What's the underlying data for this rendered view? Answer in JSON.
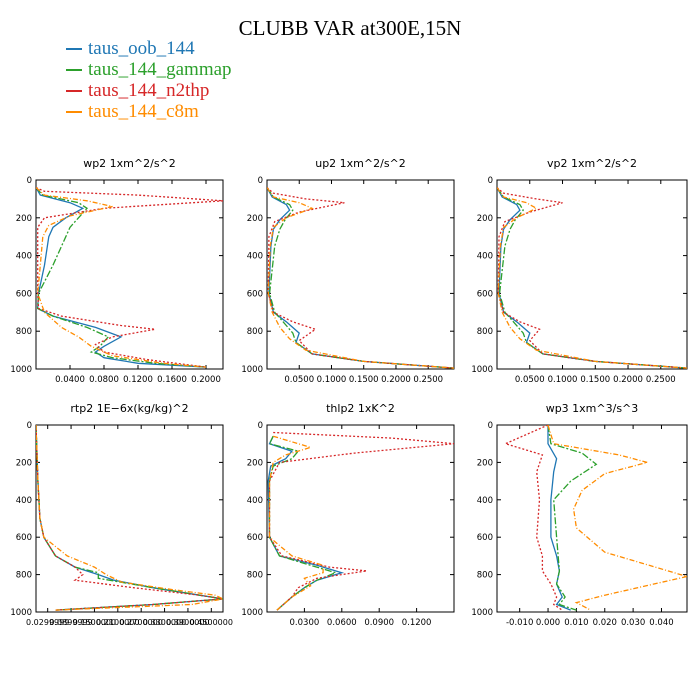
{
  "title": "CLUBB VAR at300E,15N",
  "legend": [
    {
      "label": "taus_oob_144",
      "color": "#1f77b4"
    },
    {
      "label": "taus_144_gammap",
      "color": "#2ca02c"
    },
    {
      "label": "taus_144_n2thp",
      "color": "#d62728"
    },
    {
      "label": "taus_144_c8m",
      "color": "#ff8c00"
    }
  ],
  "chart_data": [
    {
      "type": "line",
      "title": "wp2   1xm^2/s^2",
      "xlabel": "",
      "ylabel": "",
      "xlim": [
        0,
        0.22
      ],
      "ylim": [
        1000,
        0
      ],
      "y_reversed": true,
      "xticks": [
        0.04,
        0.08,
        0.12,
        0.16,
        0.2
      ],
      "xticklabels": [
        "0.0400",
        "0.0800",
        "0.1200",
        "0.1600",
        "0.2000"
      ],
      "yticks": [
        0,
        200,
        400,
        600,
        800,
        1000
      ],
      "series": [
        {
          "name": "taus_oob_144",
          "x": [
            0,
            0.005,
            0.04,
            0.055,
            0.035,
            0.02,
            0.015,
            0.01,
            0.003,
            0.002,
            0.02,
            0.07,
            0.1,
            0.08,
            0.07,
            0.08,
            0.12,
            0.2
          ],
          "y": [
            40,
            80,
            120,
            150,
            200,
            250,
            300,
            450,
            600,
            680,
            720,
            780,
            830,
            880,
            910,
            940,
            970,
            990
          ]
        },
        {
          "name": "taus_144_gammap",
          "x": [
            0,
            0.008,
            0.05,
            0.06,
            0.05,
            0.04,
            0.035,
            0.02,
            0.003,
            0.002,
            0.02,
            0.06,
            0.085,
            0.075,
            0.065,
            0.09,
            0.14,
            0.2
          ],
          "y": [
            40,
            80,
            120,
            150,
            200,
            250,
            300,
            450,
            600,
            680,
            720,
            780,
            830,
            880,
            910,
            940,
            970,
            990
          ]
        },
        {
          "name": "taus_144_n2thp",
          "x": [
            0,
            0.01,
            0.12,
            0.22,
            0.08,
            0.01,
            0.002,
            0.002,
            0.002,
            0.003,
            0.03,
            0.1,
            0.14,
            0.09,
            0.07,
            0.08,
            0.13,
            0.2
          ],
          "y": [
            40,
            60,
            80,
            110,
            150,
            200,
            250,
            400,
            600,
            680,
            720,
            770,
            790,
            830,
            870,
            910,
            950,
            990
          ]
        },
        {
          "name": "taus_144_c8m",
          "x": [
            0,
            0.01,
            0.06,
            0.09,
            0.04,
            0.015,
            0.008,
            0.005,
            0.002,
            0.01,
            0.03,
            0.05,
            0.065,
            0.09,
            0.15,
            0.2
          ],
          "y": [
            40,
            80,
            110,
            140,
            190,
            240,
            300,
            450,
            600,
            700,
            780,
            830,
            880,
            930,
            970,
            990
          ]
        }
      ]
    },
    {
      "type": "line",
      "title": "up2   1xm^2/s^2",
      "xlabel": "",
      "ylabel": "",
      "xlim": [
        0,
        0.29
      ],
      "ylim": [
        1000,
        0
      ],
      "y_reversed": true,
      "xticks": [
        0.05,
        0.1,
        0.15,
        0.2,
        0.25
      ],
      "xticklabels": [
        "0.0500",
        "0.1000",
        "0.1500",
        "0.2000",
        "0.2500"
      ],
      "yticks": [
        0,
        200,
        400,
        600,
        800,
        1000
      ],
      "series": [
        {
          "name": "taus_oob_144",
          "x": [
            0,
            0.008,
            0.03,
            0.035,
            0.02,
            0.01,
            0.006,
            0.003,
            0.01,
            0.03,
            0.05,
            0.045,
            0.07,
            0.15,
            0.29
          ],
          "y": [
            40,
            90,
            130,
            160,
            210,
            260,
            350,
            600,
            700,
            750,
            810,
            860,
            920,
            960,
            995
          ]
        },
        {
          "name": "taus_144_gammap",
          "x": [
            0,
            0.01,
            0.035,
            0.04,
            0.028,
            0.02,
            0.012,
            0.004,
            0.012,
            0.025,
            0.04,
            0.045,
            0.07,
            0.15,
            0.29
          ],
          "y": [
            40,
            90,
            130,
            160,
            210,
            260,
            350,
            600,
            700,
            750,
            810,
            860,
            920,
            960,
            995
          ]
        },
        {
          "name": "taus_144_n2thp",
          "x": [
            0,
            0.01,
            0.06,
            0.12,
            0.05,
            0.012,
            0.003,
            0.002,
            0.01,
            0.04,
            0.075,
            0.05,
            0.07,
            0.15,
            0.29
          ],
          "y": [
            40,
            70,
            100,
            120,
            170,
            220,
            300,
            600,
            700,
            750,
            790,
            850,
            920,
            960,
            995
          ]
        },
        {
          "name": "taus_144_c8m",
          "x": [
            0,
            0.01,
            0.05,
            0.07,
            0.03,
            0.01,
            0.005,
            0.002,
            0.008,
            0.02,
            0.035,
            0.06,
            0.15,
            0.29
          ],
          "y": [
            40,
            90,
            120,
            150,
            200,
            250,
            350,
            600,
            700,
            780,
            840,
            900,
            960,
            995
          ]
        }
      ]
    },
    {
      "type": "line",
      "title": "vp2   1xm^2/s^2",
      "xlabel": "",
      "ylabel": "",
      "xlim": [
        0,
        0.29
      ],
      "ylim": [
        1000,
        0
      ],
      "y_reversed": true,
      "xticks": [
        0.05,
        0.1,
        0.15,
        0.2,
        0.25
      ],
      "xticklabels": [
        "0.0500",
        "0.1000",
        "0.1500",
        "0.2000",
        "0.2500"
      ],
      "yticks": [
        0,
        200,
        400,
        600,
        800,
        1000
      ],
      "series": [
        {
          "name": "taus_oob_144",
          "x": [
            0,
            0.008,
            0.03,
            0.035,
            0.02,
            0.01,
            0.006,
            0.003,
            0.01,
            0.03,
            0.05,
            0.045,
            0.07,
            0.15,
            0.29
          ],
          "y": [
            40,
            90,
            130,
            160,
            210,
            260,
            350,
            600,
            700,
            750,
            810,
            860,
            920,
            960,
            995
          ]
        },
        {
          "name": "taus_144_gammap",
          "x": [
            0,
            0.01,
            0.035,
            0.04,
            0.028,
            0.02,
            0.012,
            0.004,
            0.012,
            0.025,
            0.04,
            0.045,
            0.07,
            0.15,
            0.29
          ],
          "y": [
            40,
            90,
            130,
            160,
            210,
            260,
            350,
            600,
            700,
            750,
            810,
            860,
            920,
            960,
            995
          ]
        },
        {
          "name": "taus_144_n2thp",
          "x": [
            0,
            0.01,
            0.06,
            0.1,
            0.05,
            0.012,
            0.003,
            0.002,
            0.01,
            0.035,
            0.065,
            0.05,
            0.07,
            0.15,
            0.29
          ],
          "y": [
            40,
            70,
            100,
            120,
            170,
            220,
            300,
            600,
            700,
            750,
            790,
            850,
            920,
            960,
            995
          ]
        },
        {
          "name": "taus_144_c8m",
          "x": [
            0,
            0.01,
            0.045,
            0.06,
            0.03,
            0.01,
            0.005,
            0.002,
            0.008,
            0.02,
            0.035,
            0.06,
            0.15,
            0.29
          ],
          "y": [
            40,
            90,
            120,
            150,
            200,
            250,
            350,
            600,
            700,
            780,
            840,
            900,
            960,
            995
          ]
        }
      ]
    },
    {
      "type": "line",
      "title": "rtp2   1E−6x(kg/kg)^2",
      "xlabel": "",
      "ylabel": "",
      "xlim": [
        0,
        0.48
      ],
      "ylim": [
        1000,
        0
      ],
      "y_reversed": true,
      "xticks": [
        0.03,
        0.09,
        0.15,
        0.21,
        0.27,
        0.33,
        0.39,
        0.45
      ],
      "xticklabels": [
        "0.0299999",
        "0.0899999",
        "0.1500000",
        "0.2100000",
        "0.2700000",
        "0.3300000",
        "0.3900000",
        "0.4500000"
      ],
      "xticklabels_overlap": true,
      "yticks": [
        0,
        200,
        400,
        600,
        800,
        1000
      ],
      "series": [
        {
          "name": "taus_oob_144",
          "x": [
            0,
            0.005,
            0.01,
            0.02,
            0.05,
            0.1,
            0.16,
            0.2,
            0.3,
            0.42,
            0.48,
            0.3,
            0.05
          ],
          "y": [
            0,
            300,
            500,
            600,
            700,
            760,
            800,
            830,
            870,
            910,
            930,
            960,
            990
          ]
        },
        {
          "name": "taus_144_gammap",
          "x": [
            0,
            0.005,
            0.01,
            0.02,
            0.05,
            0.1,
            0.16,
            0.16,
            0.3,
            0.42,
            0.48,
            0.3,
            0.05
          ],
          "y": [
            0,
            300,
            500,
            600,
            700,
            760,
            790,
            820,
            870,
            910,
            930,
            960,
            990
          ]
        },
        {
          "name": "taus_144_n2thp",
          "x": [
            0,
            0.005,
            0.01,
            0.02,
            0.05,
            0.1,
            0.12,
            0.1,
            0.25,
            0.42,
            0.48,
            0.3,
            0.05
          ],
          "y": [
            0,
            300,
            500,
            600,
            700,
            760,
            800,
            830,
            870,
            910,
            930,
            960,
            990
          ]
        },
        {
          "name": "taus_144_c8m",
          "x": [
            0,
            0.005,
            0.01,
            0.02,
            0.08,
            0.15,
            0.18,
            0.22,
            0.35,
            0.46,
            0.48,
            0.4,
            0.05
          ],
          "y": [
            0,
            300,
            500,
            600,
            700,
            760,
            800,
            840,
            880,
            910,
            930,
            960,
            990
          ]
        }
      ]
    },
    {
      "type": "line",
      "title": "thlp2   1xK^2",
      "xlabel": "",
      "ylabel": "",
      "xlim": [
        0,
        0.15
      ],
      "ylim": [
        1000,
        0
      ],
      "y_reversed": true,
      "xticks": [
        0.03,
        0.06,
        0.09,
        0.12
      ],
      "xticklabels": [
        "0.0300",
        "0.0600",
        "0.0900",
        "0.1200"
      ],
      "yticks": [
        0,
        200,
        400,
        600,
        800,
        1000
      ],
      "series": [
        {
          "name": "taus_oob_144",
          "x": [
            0.005,
            0.002,
            0.02,
            0.015,
            0.003,
            0.001,
            0.002,
            0.01,
            0.04,
            0.06,
            0.04,
            0.03,
            0.02,
            0.008
          ],
          "y": [
            60,
            100,
            140,
            180,
            220,
            300,
            600,
            700,
            750,
            790,
            830,
            870,
            920,
            990
          ]
        },
        {
          "name": "taus_144_gammap",
          "x": [
            0.005,
            0.002,
            0.025,
            0.02,
            0.005,
            0.002,
            0.002,
            0.01,
            0.035,
            0.055,
            0.04,
            0.03,
            0.02,
            0.008
          ],
          "y": [
            60,
            100,
            140,
            180,
            220,
            300,
            600,
            700,
            750,
            790,
            830,
            870,
            920,
            990
          ]
        },
        {
          "name": "taus_144_n2thp",
          "x": [
            0.005,
            0.1,
            0.15,
            0.07,
            0.01,
            0.002,
            0.002,
            0.012,
            0.05,
            0.08,
            0.04,
            0.025,
            0.02,
            0.008
          ],
          "y": [
            40,
            70,
            100,
            150,
            200,
            300,
            600,
            700,
            760,
            780,
            820,
            870,
            920,
            990
          ]
        },
        {
          "name": "taus_144_c8m",
          "x": [
            0.005,
            0.02,
            0.035,
            0.015,
            0.005,
            0.002,
            0.002,
            0.02,
            0.045,
            0.045,
            0.03,
            0.035,
            0.02,
            0.008
          ],
          "y": [
            60,
            90,
            120,
            160,
            200,
            300,
            600,
            700,
            750,
            790,
            820,
            860,
            920,
            990
          ]
        }
      ]
    },
    {
      "type": "line",
      "title": "wp3   1xm^3/s^3",
      "xlabel": "",
      "ylabel": "",
      "xlim": [
        -0.018,
        0.049
      ],
      "ylim": [
        1000,
        0
      ],
      "y_reversed": true,
      "xticks": [
        -0.01,
        0.0,
        0.01,
        0.02,
        0.03,
        0.04
      ],
      "xticklabels": [
        "-0.010",
        "0.000",
        "0.010",
        "0.020",
        "0.030",
        "0.040"
      ],
      "yticks": [
        0,
        200,
        400,
        600,
        800,
        1000
      ],
      "series": [
        {
          "name": "taus_oob_144",
          "x": [
            0,
            0,
            0.003,
            0.002,
            0.001,
            0.001,
            0.003,
            0.004,
            0.003,
            0.005,
            0.003,
            0.008
          ],
          "y": [
            0,
            100,
            180,
            250,
            400,
            600,
            700,
            780,
            850,
            920,
            960,
            990
          ]
        },
        {
          "name": "taus_144_gammap",
          "x": [
            0,
            0.001,
            0.012,
            0.017,
            0.008,
            0.002,
            0.003,
            0.004,
            0.003,
            0.006,
            0.004,
            0.01
          ],
          "y": [
            0,
            100,
            150,
            210,
            300,
            400,
            600,
            780,
            850,
            920,
            960,
            990
          ]
        },
        {
          "name": "taus_144_n2thp",
          "x": [
            0,
            -0.015,
            -0.002,
            -0.004,
            -0.003,
            -0.004,
            -0.002,
            -0.002,
            0.001,
            0.003,
            0.002,
            0.005
          ],
          "y": [
            0,
            100,
            160,
            250,
            400,
            600,
            700,
            780,
            850,
            920,
            960,
            990
          ]
        },
        {
          "name": "taus_144_c8m",
          "x": [
            0,
            0.002,
            0.025,
            0.035,
            0.02,
            0.012,
            0.009,
            0.01,
            0.02,
            0.049,
            0.02,
            0.01,
            0.015
          ],
          "y": [
            0,
            100,
            160,
            200,
            260,
            350,
            450,
            550,
            680,
            810,
            910,
            950,
            990
          ]
        }
      ]
    }
  ]
}
